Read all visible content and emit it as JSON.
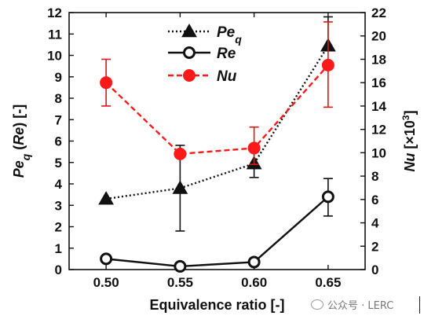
{
  "chart_data": {
    "type": "line",
    "xlabel": "Equivalence ratio [-]",
    "ylabel_left": "Peq (Re) [-]",
    "ylabel_right": "Nu [×10³]",
    "x": [
      0.5,
      0.55,
      0.6,
      0.65
    ],
    "x_tick_labels": [
      "0.50",
      "0.55",
      "0.60",
      "0.65"
    ],
    "xlim": [
      0.475,
      0.675
    ],
    "ylim_left": [
      0,
      12
    ],
    "ylim_right": [
      0,
      22
    ],
    "left_ticks": [
      "0",
      "1",
      "2",
      "3",
      "4",
      "5",
      "6",
      "7",
      "8",
      "9",
      "10",
      "11",
      "12"
    ],
    "right_ticks": [
      "0",
      "2",
      "4",
      "6",
      "8",
      "10",
      "12",
      "14",
      "16",
      "18",
      "20",
      "22"
    ],
    "grid": false,
    "legend_position": "top-center",
    "series": [
      {
        "name": "Pe",
        "name_subscript": "q",
        "axis": "left",
        "line_style": "dotted",
        "marker": "filled-triangle",
        "color": "#111111",
        "values": [
          3.3,
          3.8,
          4.95,
          10.45
        ],
        "error_low": [
          null,
          1.8,
          4.3,
          null
        ],
        "error_high": [
          null,
          5.8,
          5.6,
          11.8
        ]
      },
      {
        "name": "Re",
        "axis": "left",
        "line_style": "solid",
        "marker": "open-circle",
        "color": "#111111",
        "values": [
          0.5,
          0.15,
          0.35,
          3.4
        ],
        "error_low": [
          null,
          null,
          null,
          2.5
        ],
        "error_high": [
          null,
          null,
          null,
          4.25
        ]
      },
      {
        "name": "Nu",
        "axis": "right",
        "line_style": "dashed",
        "marker": "filled-circle",
        "color": "#ff1a1a",
        "values": [
          16.0,
          9.9,
          10.4,
          17.5
        ],
        "error_low": [
          14.0,
          null,
          9.0,
          13.9
        ],
        "error_high": [
          18.0,
          null,
          12.2,
          21.2
        ]
      }
    ]
  },
  "watermark": {
    "text": "公众号 · LERC"
  }
}
